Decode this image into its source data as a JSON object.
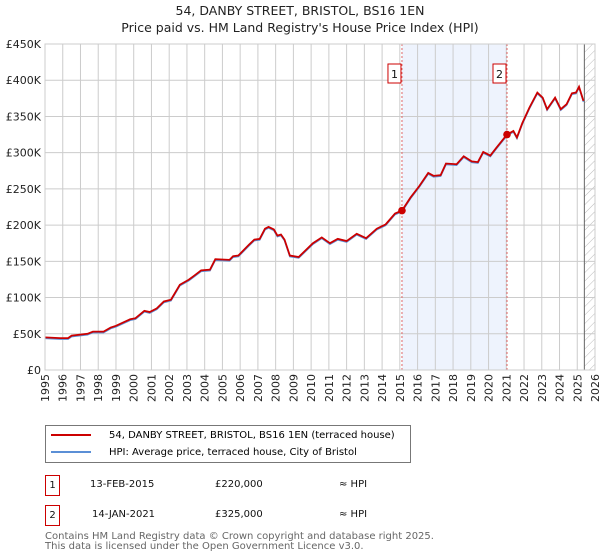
{
  "title_line1": "54, DANBY STREET, BRISTOL, BS16 1EN",
  "title_line2": "Price paid vs. HM Land Registry's House Price Index (HPI)",
  "colors": {
    "price": "#cc0000",
    "hpi": "#5b8fd6",
    "shade": "#eef3fd",
    "grid": "#cccccc"
  },
  "chart_data": {
    "type": "line",
    "title": "Price paid vs. HM Land Registry's House Price Index (HPI)",
    "xlim": [
      1995,
      2026
    ],
    "ylim": [
      0,
      450000
    ],
    "xticks": [
      "1995",
      "1996",
      "1997",
      "1998",
      "1999",
      "2000",
      "2001",
      "2002",
      "2003",
      "2004",
      "2005",
      "2006",
      "2007",
      "2008",
      "2009",
      "2010",
      "2011",
      "2012",
      "2013",
      "2014",
      "2015",
      "2016",
      "2017",
      "2018",
      "2019",
      "2020",
      "2021",
      "2022",
      "2023",
      "2024",
      "2025",
      "2026"
    ],
    "yticks": [
      {
        "v": 0,
        "label": "£0"
      },
      {
        "v": 50000,
        "label": "£50K"
      },
      {
        "v": 100000,
        "label": "£100K"
      },
      {
        "v": 150000,
        "label": "£150K"
      },
      {
        "v": 200000,
        "label": "£200K"
      },
      {
        "v": 250000,
        "label": "£250K"
      },
      {
        "v": 300000,
        "label": "£300K"
      },
      {
        "v": 350000,
        "label": "£350K"
      },
      {
        "v": 400000,
        "label": "£400K"
      },
      {
        "v": 450000,
        "label": "£450K"
      }
    ],
    "grid": true,
    "series": [
      {
        "name": "54, DANBY STREET, BRISTOL, BS16 1EN (terraced house)",
        "x": [
          1995.0,
          1995.85,
          1996.3,
          1996.5,
          1997.4,
          1997.7,
          1998.3,
          1998.7,
          1999.0,
          1999.8,
          2000.1,
          2000.6,
          2000.9,
          2001.3,
          2001.7,
          2002.1,
          2002.6,
          2003.1,
          2003.4,
          2003.8,
          2004.3,
          2004.6,
          2005.4,
          2005.6,
          2005.9,
          2006.5,
          2006.8,
          2007.1,
          2007.4,
          2007.6,
          2007.9,
          2008.1,
          2008.3,
          2008.5,
          2008.8,
          2009.3,
          2010.1,
          2010.6,
          2011.06,
          2011.5,
          2012.0,
          2012.57,
          2013.1,
          2013.7,
          2014.2,
          2014.73,
          2015.12,
          2015.6,
          2016.1,
          2016.6,
          2016.9,
          2017.3,
          2017.6,
          2018.2,
          2018.6,
          2019.05,
          2019.4,
          2019.7,
          2020.1,
          2020.45,
          2021.04,
          2021.4,
          2021.6,
          2021.9,
          2022.3,
          2022.75,
          2023.05,
          2023.3,
          2023.75,
          2024.07,
          2024.4,
          2024.7,
          2024.93,
          2025.1,
          2025.35
        ],
        "y": [
          45,
          44,
          44,
          47.5,
          50,
          53,
          53,
          58.6,
          61,
          70,
          71.5,
          81.7,
          80,
          85,
          94.6,
          97,
          117.7,
          124.6,
          130,
          137.5,
          138.5,
          153,
          152,
          157,
          158,
          173,
          180,
          181,
          195,
          197.5,
          194,
          185.5,
          187,
          180,
          158,
          156,
          175,
          183,
          175,
          181,
          178,
          188,
          182,
          195,
          201,
          216,
          220,
          238,
          254,
          272,
          268,
          269,
          285,
          284,
          295,
          288,
          287,
          301,
          296,
          307,
          325,
          330,
          321,
          340.6,
          362,
          383,
          376,
          360,
          376,
          360,
          367,
          382,
          383,
          391,
          371.5
        ],
        "y_unit": "£K"
      },
      {
        "name": "HPI: Average price, terraced house, City of Bristol",
        "same_as_series": 0
      }
    ],
    "sales": [
      {
        "id": "1",
        "x": 2015.12,
        "y": 220
      },
      {
        "id": "2",
        "x": 2021.04,
        "y": 325
      }
    ],
    "forecast_hatch_from": 2025.4
  },
  "legend": {
    "price_label": "54, DANBY STREET, BRISTOL, BS16 1EN (terraced house)",
    "hpi_label": "HPI: Average price, terraced house, City of Bristol"
  },
  "transactions": [
    {
      "num": "1",
      "date": "13-FEB-2015",
      "price": "£220,000",
      "hpi": "≈ HPI"
    },
    {
      "num": "2",
      "date": "14-JAN-2021",
      "price": "£325,000",
      "hpi": "≈ HPI"
    }
  ],
  "footer_line1": "Contains HM Land Registry data © Crown copyright and database right 2025.",
  "footer_line2": "This data is licensed under the Open Government Licence v3.0."
}
